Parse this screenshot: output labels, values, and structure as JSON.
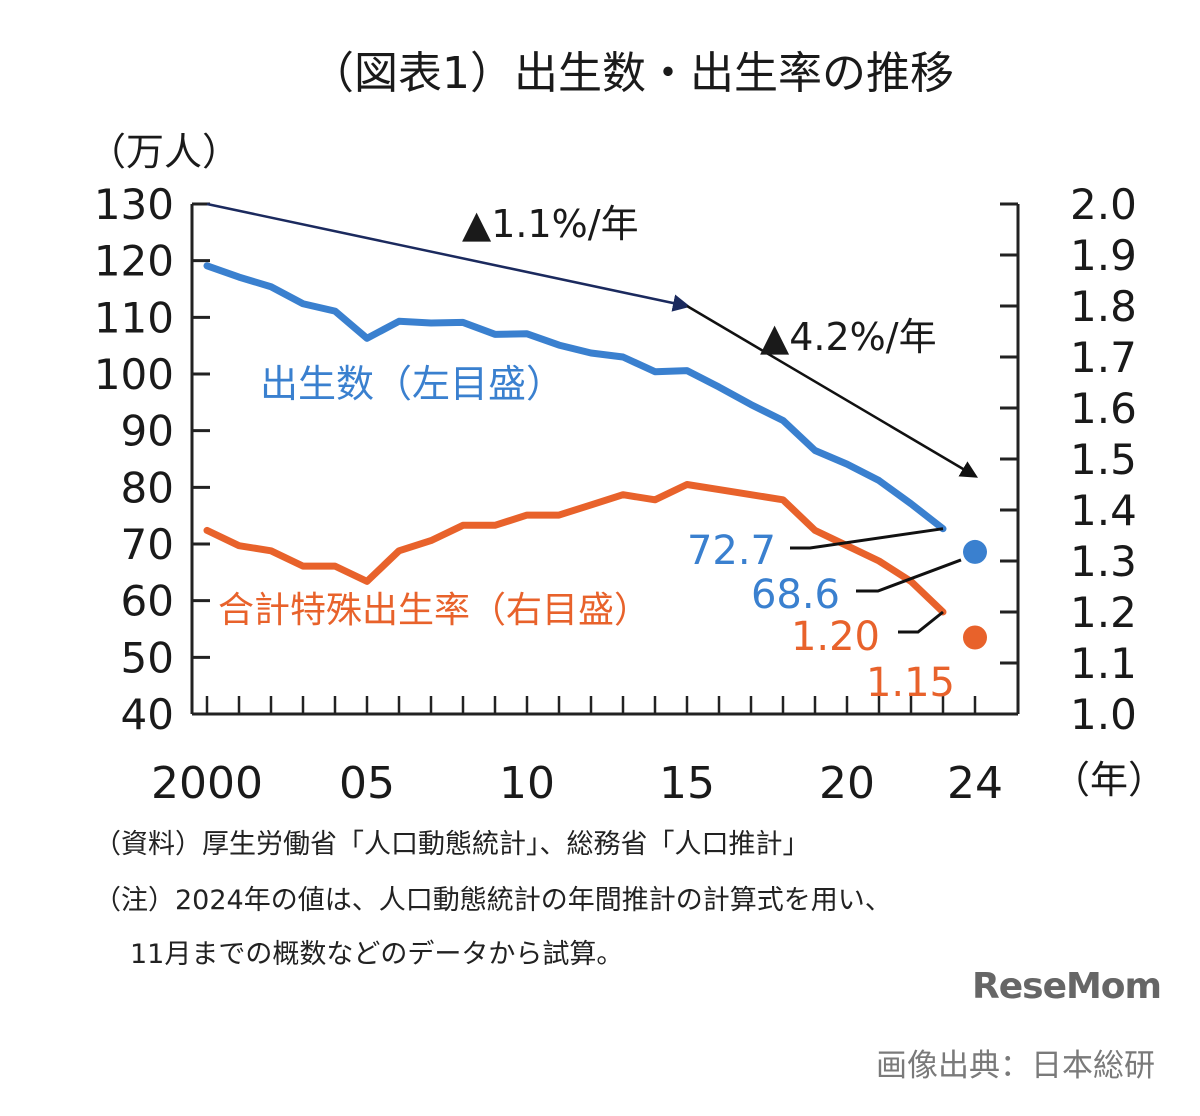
{
  "title": "（図表1）出生数・出生率の推移",
  "left_unit": "（万人）",
  "x_unit": "（年）",
  "chart_data": {
    "type": "line",
    "title": "（図表1）出生数・出生率の推移",
    "x": [
      2000,
      2001,
      2002,
      2003,
      2004,
      2005,
      2006,
      2007,
      2008,
      2009,
      2010,
      2011,
      2012,
      2013,
      2014,
      2015,
      2016,
      2017,
      2018,
      2019,
      2020,
      2021,
      2022,
      2023
    ],
    "x_tick_labels": [
      {
        "x": 2000,
        "label": "2000"
      },
      {
        "x": 2005,
        "label": "05"
      },
      {
        "x": 2010,
        "label": "10"
      },
      {
        "x": 2015,
        "label": "15"
      },
      {
        "x": 2020,
        "label": "20"
      },
      {
        "x": 2024,
        "label": "24"
      }
    ],
    "xlim": [
      2000,
      2024
    ],
    "y_left": {
      "ylim": [
        40,
        130
      ],
      "ticks": [
        "40",
        "50",
        "60",
        "70",
        "80",
        "90",
        "100",
        "110",
        "120",
        "130"
      ]
    },
    "y_right": {
      "ylim": [
        1.0,
        2.0
      ],
      "ticks": [
        "1.0",
        "1.1",
        "1.2",
        "1.3",
        "1.4",
        "1.5",
        "1.6",
        "1.7",
        "1.8",
        "1.9",
        "2.0"
      ]
    },
    "series": [
      {
        "name": "出生数（左目盛）",
        "axis": "left",
        "color": "#3a80cf",
        "values": [
          119.1,
          117.1,
          115.4,
          112.4,
          111.1,
          106.3,
          109.3,
          109.0,
          109.1,
          107.0,
          107.1,
          105.1,
          103.7,
          103.0,
          100.4,
          100.6,
          97.7,
          94.6,
          91.8,
          86.5,
          84.1,
          81.2,
          77.1,
          72.7
        ],
        "estimate": {
          "x": 2024,
          "value": 68.6,
          "label": "68.6"
        },
        "last_label": "72.7"
      },
      {
        "name": "合計特殊出生率（右目盛）",
        "axis": "right",
        "color": "#e8622b",
        "values": [
          1.36,
          1.33,
          1.32,
          1.29,
          1.29,
          1.26,
          1.32,
          1.34,
          1.37,
          1.37,
          1.39,
          1.39,
          1.41,
          1.43,
          1.42,
          1.45,
          1.44,
          1.43,
          1.42,
          1.36,
          1.33,
          1.3,
          1.26,
          1.2
        ],
        "estimate": {
          "x": 2024,
          "value": 1.15,
          "label": "1.15"
        },
        "last_label": "1.20"
      }
    ],
    "annotations": [
      {
        "text": "▲1.1%/年",
        "from": {
          "x": 2000,
          "y": 130
        },
        "to": {
          "x": 2015,
          "y": 112
        },
        "color": "#1b2a5e"
      },
      {
        "text": "▲4.2%/年",
        "from": {
          "x": 2015,
          "y": 112
        },
        "to": {
          "x": 2024,
          "y": 82
        },
        "color": "#111111"
      }
    ]
  },
  "notes": [
    "（資料）厚生労働省「人口動態統計」、総務省「人口推計」",
    "（注）2024年の値は、人口動態統計の年間推計の計算式を用い、",
    "11月までの概数などのデータから試算。"
  ],
  "logo_text": "ReseMom",
  "credit": "画像出典：日本総研"
}
